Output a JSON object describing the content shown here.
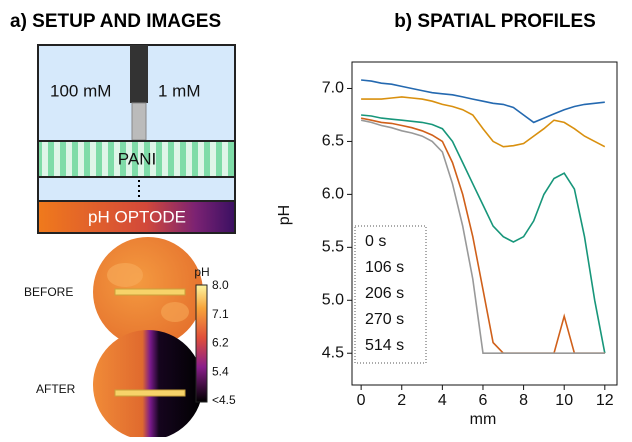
{
  "panel_a": {
    "title": "a) SETUP AND IMAGES",
    "setup": {
      "left_concentration": "100 mM",
      "right_concentration": "1 mM",
      "membrane": "PANI",
      "sensor": "pH OPTODE"
    },
    "images": {
      "before": "BEFORE",
      "after": "AFTER",
      "colorbar_title": "pH",
      "colorbar_ticks": [
        "8.0",
        "7.1",
        "6.2",
        "5.4",
        "<4.5"
      ]
    }
  },
  "chart_data": {
    "type": "line",
    "title": "b) SPATIAL PROFILES",
    "x_label": "mm",
    "y_label": "pH",
    "x": [
      0,
      0.5,
      1,
      1.5,
      2,
      2.5,
      3,
      3.5,
      4,
      4.5,
      5,
      5.5,
      6,
      6.5,
      7,
      7.5,
      8,
      8.5,
      9,
      9.5,
      10,
      10.5,
      11,
      11.5,
      12
    ],
    "series": [
      {
        "name": "0 s",
        "color": "#2469b0",
        "values": [
          7.08,
          7.07,
          7.05,
          7.04,
          7.02,
          7.0,
          6.98,
          6.96,
          6.95,
          6.94,
          6.92,
          6.9,
          6.88,
          6.86,
          6.85,
          6.82,
          6.75,
          6.68,
          6.72,
          6.76,
          6.8,
          6.83,
          6.85,
          6.86,
          6.87
        ]
      },
      {
        "name": "106 s",
        "color": "#d9900f",
        "values": [
          6.9,
          6.9,
          6.9,
          6.91,
          6.92,
          6.91,
          6.9,
          6.88,
          6.85,
          6.83,
          6.8,
          6.75,
          6.62,
          6.5,
          6.45,
          6.46,
          6.48,
          6.55,
          6.62,
          6.7,
          6.68,
          6.62,
          6.55,
          6.5,
          6.45
        ]
      },
      {
        "name": "206 s",
        "color": "#17967a",
        "values": [
          6.75,
          6.74,
          6.72,
          6.71,
          6.7,
          6.69,
          6.68,
          6.66,
          6.62,
          6.5,
          6.3,
          6.1,
          5.9,
          5.7,
          5.6,
          5.55,
          5.6,
          5.75,
          6.0,
          6.15,
          6.2,
          6.05,
          5.6,
          5.0,
          4.5
        ]
      },
      {
        "name": "270 s",
        "color": "#d0601a",
        "values": [
          6.72,
          6.7,
          6.68,
          6.67,
          6.65,
          6.63,
          6.6,
          6.56,
          6.5,
          6.3,
          6.0,
          5.6,
          5.1,
          4.6,
          4.5,
          4.5,
          4.5,
          4.5,
          4.5,
          4.5,
          4.85,
          4.5,
          4.5,
          4.5,
          4.5
        ]
      },
      {
        "name": "514 s",
        "color": "#999999",
        "values": [
          6.7,
          6.68,
          6.65,
          6.63,
          6.6,
          6.58,
          6.55,
          6.5,
          6.4,
          6.1,
          5.7,
          5.2,
          4.5,
          4.5,
          4.5,
          4.5,
          4.5,
          4.5,
          4.5,
          4.5,
          4.5,
          4.5,
          4.5,
          4.5,
          4.5
        ]
      }
    ],
    "xlim": [
      -0.45,
      12.6
    ],
    "ylim": [
      4.2,
      7.25
    ],
    "xticks": [
      0,
      2,
      4,
      6,
      8,
      10,
      12
    ],
    "yticks": [
      4.5,
      {
        "value": 5,
        "label": "5.0"
      },
      5.5,
      {
        "value": 6,
        "label": "6.0"
      },
      6.5,
      {
        "value": 7,
        "label": "7.0"
      }
    ],
    "legend": "lower left"
  }
}
